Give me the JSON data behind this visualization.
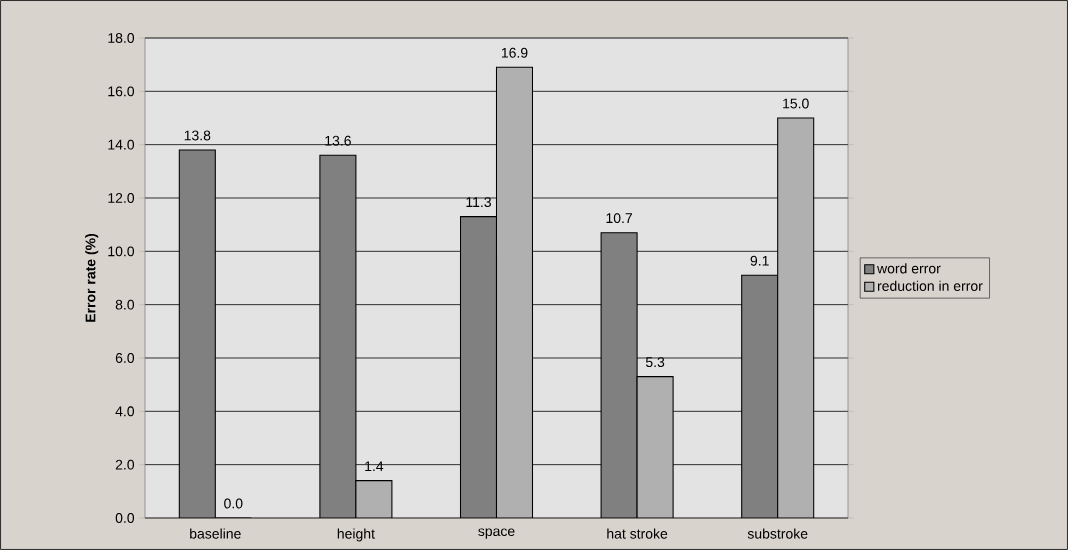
{
  "chart_data": {
    "type": "bar",
    "ylabel": "Error rate (%)",
    "categories": [
      "baseline",
      "height",
      "space",
      "hat stroke",
      "substroke"
    ],
    "series": [
      {
        "name": "word error",
        "color": "#808080",
        "values": [
          13.8,
          13.6,
          11.3,
          10.7,
          9.1
        ],
        "value_labels": [
          "13.8",
          "13.6",
          "11.3",
          "10.7",
          "9.1"
        ]
      },
      {
        "name": "reduction in error",
        "color": "#b0b0b0",
        "values": [
          0.0,
          1.4,
          16.9,
          5.3,
          15.0
        ],
        "value_labels": [
          "0.0",
          "1.4",
          "16.9",
          "5.3",
          "15.0"
        ]
      }
    ],
    "ylim": [
      0,
      18
    ],
    "yticks": [
      {
        "value": 0,
        "label": "0.0"
      },
      {
        "value": 2,
        "label": "2.0"
      },
      {
        "value": 4,
        "label": "4.0"
      },
      {
        "value": 6,
        "label": "6.0"
      },
      {
        "value": 8,
        "label": "8.0"
      },
      {
        "value": 10,
        "label": "10.0"
      },
      {
        "value": 12,
        "label": "12.0"
      },
      {
        "value": 14,
        "label": "14.0"
      },
      {
        "value": 16,
        "label": "16.0"
      },
      {
        "value": 18,
        "label": "18.0"
      }
    ],
    "grid": "y",
    "legend": "right"
  }
}
